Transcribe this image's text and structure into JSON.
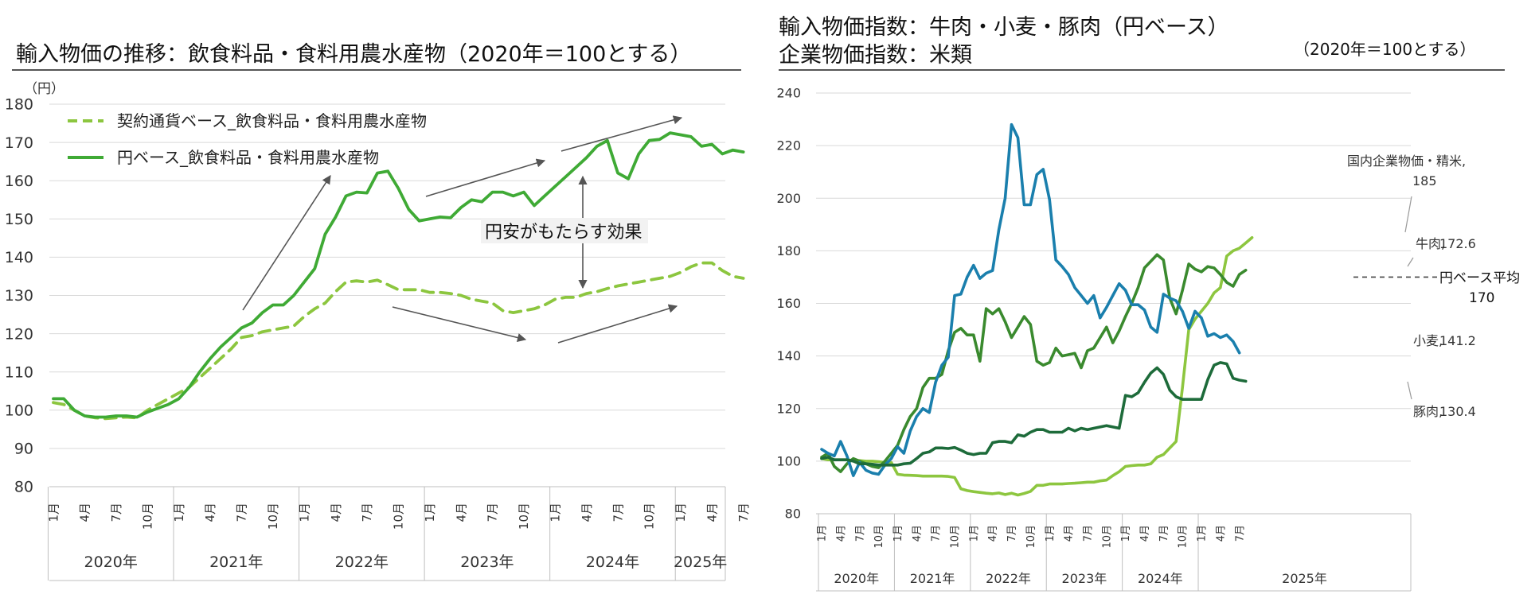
{
  "left_title": "輸入物価の推移：飲食料品・食料用農水産物（2020年＝100とする）",
  "right_title_1": "輸入物価指数：牛肉・小麦・豚肉（円ベース）",
  "right_title_2": "企業物価指数：米類",
  "right_note": "（2020年＝100とする）",
  "chart_data": [
    {
      "type": "line",
      "unit_label": "（円）",
      "ylim": [
        80,
        180
      ],
      "yticks": [
        80,
        90,
        100,
        110,
        120,
        130,
        140,
        150,
        160,
        170,
        180
      ],
      "grid": true,
      "legend": "top-left",
      "month_labels": [
        "1月",
        "4月",
        "7月",
        "10月"
      ],
      "years": [
        "2020年",
        "2021年",
        "2022年",
        "2023年",
        "2024年",
        "2025年"
      ],
      "x_start": "2020-01",
      "annotation": "円安がもたらす効果",
      "series": [
        {
          "name": "契約通貨ベース_飲食料品・食料用農水産物",
          "color": "#8cc63f",
          "dash": true,
          "values": [
            102,
            101.5,
            100,
            98.5,
            98,
            97.8,
            98,
            98.2,
            98,
            100,
            101.5,
            103,
            104.5,
            106,
            108.5,
            111,
            113.5,
            116,
            119,
            119.5,
            120.5,
            121,
            121.5,
            122,
            124.5,
            126.5,
            128,
            131,
            133.5,
            133.8,
            133.5,
            134,
            132.8,
            131.5,
            131.5,
            131.5,
            130.8,
            130.8,
            130.5,
            130,
            129,
            128.5,
            128,
            126,
            125.5,
            126,
            126.5,
            127.5,
            129,
            129.5,
            129.5,
            130.5,
            131,
            131.8,
            132.5,
            133,
            133.5,
            134,
            134.5,
            135,
            136,
            137.5,
            138.5,
            138.5,
            136.5,
            135,
            134.5
          ]
        },
        {
          "name": "円ベース_飲食料品・食料用農水産物",
          "color": "#3faa35",
          "dash": false,
          "values": [
            103,
            103,
            100,
            98.5,
            98.2,
            98.2,
            98.5,
            98.5,
            98.2,
            99.5,
            100.5,
            101.5,
            103,
            106,
            110,
            113.5,
            116.5,
            119,
            121.5,
            122.8,
            125.5,
            127.5,
            127.5,
            130,
            133.5,
            137,
            146,
            150.5,
            156,
            157,
            156.8,
            162,
            162.5,
            158,
            152.5,
            149.5,
            150,
            150.5,
            150.3,
            153,
            155,
            154.5,
            157,
            157,
            156,
            157,
            153.5,
            156,
            158.5,
            161,
            163.5,
            166,
            169,
            170.5,
            162,
            160.5,
            167,
            170.5,
            170.8,
            172.5,
            172,
            171.5,
            169,
            169.5,
            167,
            168,
            167.5
          ]
        }
      ]
    },
    {
      "type": "line",
      "ylim": [
        80,
        240
      ],
      "yticks": [
        80,
        100,
        120,
        140,
        160,
        180,
        200,
        220,
        240
      ],
      "grid": true,
      "month_labels": [
        "1月",
        "4月",
        "7月",
        "10月"
      ],
      "years": [
        "2020年",
        "2021年",
        "2022年",
        "2023年",
        "2024年",
        "2025年"
      ],
      "x_start": "2020-01",
      "reference": {
        "label": "円ベース平均",
        "value": 170,
        "value_label": "170"
      },
      "series": [
        {
          "name": "国内企業物価・精米",
          "label_text": "国内企業物価・精米,",
          "value_label": "185",
          "color": "#8dc63f",
          "values": [
            101,
            100.5,
            100.5,
            100.5,
            100.5,
            100.2,
            100.2,
            100,
            100,
            99.8,
            99.5,
            99.5,
            95,
            94.7,
            94.6,
            94.5,
            94.3,
            94.3,
            94.3,
            94.3,
            94.2,
            93.8,
            89.5,
            88.8,
            88.4,
            88.1,
            87.8,
            87.6,
            87.9,
            87.3,
            87.8,
            87.1,
            87.7,
            88.5,
            90.8,
            90.8,
            91.3,
            91.3,
            91.3,
            91.5,
            91.6,
            91.8,
            92,
            92,
            92.5,
            92.8,
            94.5,
            96,
            98,
            98.3,
            98.5,
            98.5,
            99,
            101.5,
            102.5,
            105,
            107.5,
            128,
            150,
            154,
            157,
            160,
            164,
            166,
            178,
            180,
            181,
            183,
            185
          ]
        },
        {
          "name": "牛肉",
          "label_text": "牛肉,",
          "value_label": "172.6",
          "color": "#3a8a2e",
          "values": [
            101.5,
            103,
            98,
            96,
            99,
            101,
            100,
            99,
            98,
            97.5,
            100,
            103,
            106,
            112,
            117,
            120,
            128,
            131.5,
            131.5,
            133,
            142,
            149,
            150.5,
            148,
            148,
            138,
            158,
            156,
            158,
            153,
            147,
            151,
            155,
            152,
            138,
            136.5,
            137.5,
            143,
            140,
            140.5,
            141,
            135.5,
            142,
            143,
            147,
            151,
            145,
            149.5,
            155,
            160,
            166,
            173.5,
            176,
            178.5,
            176.5,
            162,
            156,
            165,
            175,
            173,
            172,
            174,
            173.5,
            171,
            168,
            166.5,
            171,
            172.6
          ]
        },
        {
          "name": "小麦",
          "label_text": "小麦,",
          "value_label": "141.2",
          "color": "#1a7fad",
          "values": [
            104.5,
            103,
            102,
            107.5,
            102,
            94.5,
            99.5,
            96.5,
            95.5,
            95,
            98.5,
            101,
            105.5,
            103,
            111.5,
            117,
            120,
            118.5,
            130,
            136.5,
            139.5,
            163,
            163.5,
            170,
            174.5,
            169.5,
            171.5,
            172.5,
            188,
            200,
            228,
            223,
            197.5,
            197.5,
            209,
            211,
            199.5,
            176.5,
            174,
            171,
            166,
            163,
            160,
            163,
            154.5,
            158.5,
            163,
            167.5,
            165,
            159.5,
            159.5,
            157.5,
            151,
            149,
            163.5,
            162,
            161,
            157,
            150.5,
            157,
            154.5,
            147.5,
            148.5,
            147,
            148,
            145.5,
            141.2
          ]
        },
        {
          "name": "豚肉",
          "label_text": "豚肉,",
          "value_label": "130.4",
          "color": "#1d6b3a",
          "values": [
            101,
            101.5,
            100.5,
            100.5,
            100.5,
            100,
            99,
            99,
            98.8,
            98.5,
            98.5,
            98.5,
            98.5,
            99,
            99.2,
            101,
            103,
            103.5,
            105,
            105,
            104.8,
            105.2,
            104.2,
            103,
            102.5,
            103,
            103,
            107,
            107.5,
            107.5,
            107,
            110,
            109.5,
            111,
            112,
            112,
            111,
            111,
            111,
            112.5,
            111.5,
            112.5,
            112,
            112.5,
            113,
            113.5,
            113,
            112.5,
            125,
            124.5,
            126,
            130,
            133.5,
            135.5,
            133,
            127,
            124.5,
            123.5,
            123.5,
            123.5,
            123.5,
            131,
            136.5,
            137.5,
            137,
            131.5,
            130.8,
            130.4
          ]
        }
      ]
    }
  ]
}
